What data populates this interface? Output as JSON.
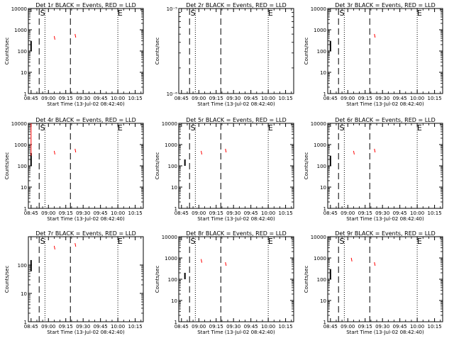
{
  "colors": {
    "events": "#000000",
    "lld": "#ff0000",
    "axis": "#000000"
  },
  "shared": {
    "xlabel": "Start Time (13-Jul-02 08:42:40)",
    "ylabel": "Counts/sec",
    "x_ticks": [
      "08:45",
      "09:00",
      "09:15",
      "09:30",
      "09:45",
      "10:00",
      "10:15"
    ]
  },
  "chart_data": [
    {
      "type": "line",
      "title": "Det 1r BLACK = Events, RED = LLD",
      "ylim": [
        1,
        10000
      ],
      "yscale": "log",
      "ytick_labels": [
        "1",
        "10",
        "100",
        "1000",
        "10000"
      ],
      "marker_labels": [
        "S",
        "E"
      ],
      "events_segments": [
        {
          "t": "08:45",
          "lo": 100,
          "hi": 300
        }
      ],
      "lld_marks": [
        {
          "t": "09:05",
          "v": 400
        },
        {
          "t": "09:23",
          "v": 500
        }
      ]
    },
    {
      "type": "line",
      "title": "Det 2r BLACK = Events, RED = LLD",
      "ylim": [
        1e-06,
        1e-05
      ],
      "yscale": "log",
      "ytick_labels": [
        "10⁻⁶",
        "10⁻⁵"
      ],
      "marker_labels": [
        "S",
        "E"
      ],
      "events_segments": [],
      "lld_marks": []
    },
    {
      "type": "line",
      "title": "Det 3r BLACK = Events, RED = LLD",
      "ylim": [
        1,
        10000
      ],
      "yscale": "log",
      "ytick_labels": [
        "1",
        "10",
        "100",
        "1000",
        "10000"
      ],
      "marker_labels": [
        "S",
        "E"
      ],
      "events_segments": [
        {
          "t": "08:45",
          "lo": 100,
          "hi": 300
        }
      ],
      "lld_marks": [
        {
          "t": "09:23",
          "v": 500
        }
      ]
    },
    {
      "type": "line",
      "title": "Det 4r BLACK = Events, RED = LLD",
      "ylim": [
        1,
        10000
      ],
      "yscale": "log",
      "ytick_labels": [
        "1",
        "10",
        "100",
        "1000",
        "10000"
      ],
      "marker_labels": [
        "S",
        "E"
      ],
      "events_segments": [
        {
          "t": "08:45",
          "lo": 100,
          "hi": 400
        }
      ],
      "lld_marks": [
        {
          "t": "08:45",
          "v": 10000,
          "lo": 300
        },
        {
          "t": "09:05",
          "v": 400
        },
        {
          "t": "09:23",
          "v": 500
        }
      ]
    },
    {
      "type": "line",
      "title": "Det 5r BLACK = Events, RED = LLD",
      "ylim": [
        1,
        10000
      ],
      "yscale": "log",
      "ytick_labels": [
        "1",
        "10",
        "100",
        "1000",
        "10000"
      ],
      "marker_labels": [
        "S",
        "E"
      ],
      "events_segments": [
        {
          "t": "08:48",
          "lo": 100,
          "hi": 200
        }
      ],
      "lld_marks": [
        {
          "t": "09:02",
          "v": 400
        },
        {
          "t": "09:23",
          "v": 500
        }
      ]
    },
    {
      "type": "line",
      "title": "Det 6r BLACK = Events, RED = LLD",
      "ylim": [
        1,
        10000
      ],
      "yscale": "log",
      "ytick_labels": [
        "1",
        "10",
        "100",
        "1000",
        "10000"
      ],
      "marker_labels": [
        "S",
        "E"
      ],
      "events_segments": [
        {
          "t": "08:45",
          "lo": 100,
          "hi": 300
        }
      ],
      "lld_marks": [
        {
          "t": "09:05",
          "v": 400
        },
        {
          "t": "09:23",
          "v": 500
        }
      ]
    },
    {
      "type": "line",
      "title": "Det 7r BLACK = Events, RED = LLD",
      "ylim": [
        1,
        1000
      ],
      "yscale": "log",
      "ytick_labels": [
        "1",
        "10",
        "100"
      ],
      "marker_labels": [
        "S",
        "E"
      ],
      "events_segments": [
        {
          "t": "08:45",
          "lo": 60,
          "hi": 150
        }
      ],
      "lld_marks": [
        {
          "t": "09:05",
          "v": 400
        },
        {
          "t": "09:23",
          "v": 500
        }
      ]
    },
    {
      "type": "line",
      "title": "Det 8r BLACK = Events, RED = LLD",
      "ylim": [
        1,
        10000
      ],
      "yscale": "log",
      "ytick_labels": [
        "1",
        "10",
        "100",
        "1000",
        "10000"
      ],
      "marker_labels": [
        "S",
        "E"
      ],
      "events_segments": [
        {
          "t": "08:48",
          "lo": 100,
          "hi": 200
        }
      ],
      "lld_marks": [
        {
          "t": "09:02",
          "v": 700
        },
        {
          "t": "09:23",
          "v": 500
        }
      ]
    },
    {
      "type": "line",
      "title": "Det 9r BLACK = Events, RED = LLD",
      "ylim": [
        1,
        10000
      ],
      "yscale": "log",
      "ytick_labels": [
        "1",
        "10",
        "100",
        "1000",
        "10000"
      ],
      "marker_labels": [
        "S",
        "E"
      ],
      "events_segments": [
        {
          "t": "08:45",
          "lo": 100,
          "hi": 300
        }
      ],
      "lld_marks": [
        {
          "t": "09:03",
          "v": 800
        },
        {
          "t": "09:23",
          "v": 500
        }
      ]
    }
  ]
}
